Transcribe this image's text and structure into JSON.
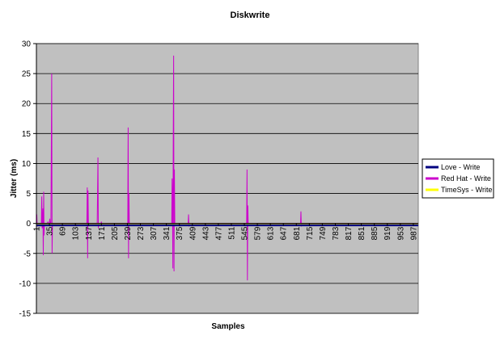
{
  "chart_data": {
    "type": "line",
    "title": "Diskwrite",
    "xlabel": "Samples",
    "ylabel": "Jitter (ms)",
    "ylim": [
      -15,
      30
    ],
    "y_ticks": [
      -15,
      -10,
      -5,
      0,
      5,
      10,
      15,
      20,
      25,
      30
    ],
    "x_range": [
      1,
      1000
    ],
    "x_tick_labels": [
      1,
      35,
      69,
      103,
      137,
      171,
      205,
      239,
      273,
      307,
      341,
      375,
      409,
      443,
      477,
      511,
      545,
      579,
      613,
      647,
      681,
      715,
      749,
      783,
      817,
      851,
      885,
      919,
      953,
      987
    ],
    "grid": "horizontal",
    "plot_background": "#C0C0C0",
    "legend_position": "right",
    "series": [
      {
        "name": "Love - Write",
        "color": "#000080",
        "points": [
          [
            1,
            -0.3
          ],
          [
            1000,
            -0.3
          ]
        ]
      },
      {
        "name": "Red Hat - Write",
        "color": "#CC00CC",
        "points": [
          [
            1,
            0
          ],
          [
            2,
            1.5
          ],
          [
            3,
            -0.5
          ],
          [
            4,
            0
          ],
          [
            14,
            0
          ],
          [
            15,
            4.5
          ],
          [
            16,
            -0.8
          ],
          [
            17,
            0
          ],
          [
            18,
            2.5
          ],
          [
            19,
            -5.3
          ],
          [
            20,
            5.3
          ],
          [
            21,
            -2
          ],
          [
            22,
            0
          ],
          [
            30,
            0
          ],
          [
            31,
            0.3
          ],
          [
            32,
            0
          ],
          [
            35,
            0
          ],
          [
            36,
            0.8
          ],
          [
            37,
            0
          ],
          [
            39,
            0
          ],
          [
            40,
            12.5
          ],
          [
            41,
            25
          ],
          [
            42,
            -5
          ],
          [
            43,
            0
          ],
          [
            133,
            0
          ],
          [
            134,
            6
          ],
          [
            135,
            -5.8
          ],
          [
            136,
            5.5
          ],
          [
            137,
            0
          ],
          [
            160,
            0
          ],
          [
            161,
            5.2
          ],
          [
            162,
            11
          ],
          [
            163,
            -0.8
          ],
          [
            164,
            0
          ],
          [
            170,
            0
          ],
          [
            171,
            0.3
          ],
          [
            172,
            0
          ],
          [
            240,
            0
          ],
          [
            241,
            16
          ],
          [
            242,
            -5.8
          ],
          [
            243,
            5
          ],
          [
            244,
            0
          ],
          [
            355,
            0
          ],
          [
            356,
            7.5
          ],
          [
            357,
            3.5
          ],
          [
            358,
            -7.5
          ],
          [
            359,
            14
          ],
          [
            360,
            28
          ],
          [
            361,
            -8
          ],
          [
            362,
            9
          ],
          [
            363,
            0
          ],
          [
            398,
            0
          ],
          [
            399,
            1.5
          ],
          [
            400,
            -0.5
          ],
          [
            401,
            0
          ],
          [
            551,
            0
          ],
          [
            552,
            9
          ],
          [
            553,
            -9.5
          ],
          [
            554,
            3
          ],
          [
            555,
            0
          ],
          [
            692,
            0
          ],
          [
            693,
            2
          ],
          [
            694,
            -0.5
          ],
          [
            695,
            0
          ],
          [
            1000,
            0
          ]
        ]
      },
      {
        "name": "TimeSys - Write",
        "color": "#FFFF00",
        "points": [
          [
            1,
            -0.05
          ],
          [
            1000,
            -0.05
          ]
        ]
      }
    ]
  }
}
